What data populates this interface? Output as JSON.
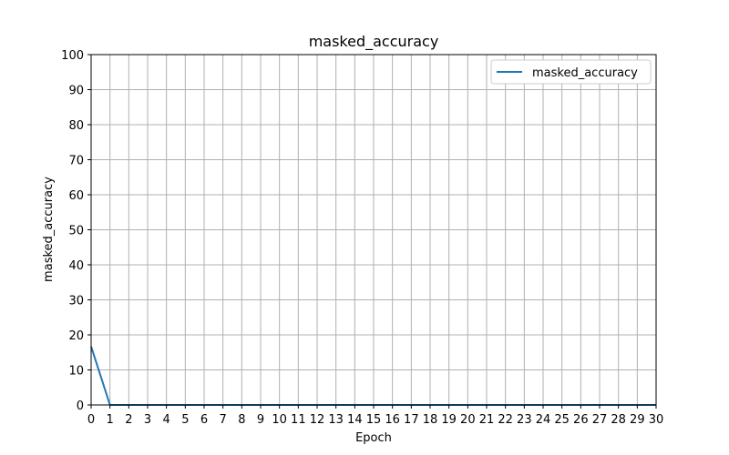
{
  "chart_data": {
    "type": "line",
    "title": "masked_accuracy",
    "xlabel": "Epoch",
    "ylabel": "masked_accuracy",
    "xlim": [
      0,
      30
    ],
    "ylim": [
      0,
      100
    ],
    "xticks": [
      0,
      1,
      2,
      3,
      4,
      5,
      6,
      7,
      8,
      9,
      10,
      11,
      12,
      13,
      14,
      15,
      16,
      17,
      18,
      19,
      20,
      21,
      22,
      23,
      24,
      25,
      26,
      27,
      28,
      29,
      30
    ],
    "yticks": [
      0,
      10,
      20,
      30,
      40,
      50,
      60,
      70,
      80,
      90,
      100
    ],
    "grid": true,
    "legend_position": "top-right",
    "series": [
      {
        "name": "masked_accuracy",
        "color": "#1f77b4",
        "x": [
          0,
          1,
          2,
          3,
          4,
          5,
          6,
          7,
          8,
          9,
          10,
          11,
          12,
          13,
          14,
          15,
          16,
          17,
          18,
          19,
          20,
          21,
          22,
          23,
          24,
          25,
          26,
          27,
          28,
          29,
          30
        ],
        "y": [
          16.7,
          0,
          0,
          0,
          0,
          0,
          0,
          0,
          0,
          0,
          0,
          0,
          0,
          0,
          0,
          0,
          0,
          0,
          0,
          0,
          0,
          0,
          0,
          0,
          0,
          0,
          0,
          0,
          0,
          0,
          0
        ]
      }
    ]
  }
}
